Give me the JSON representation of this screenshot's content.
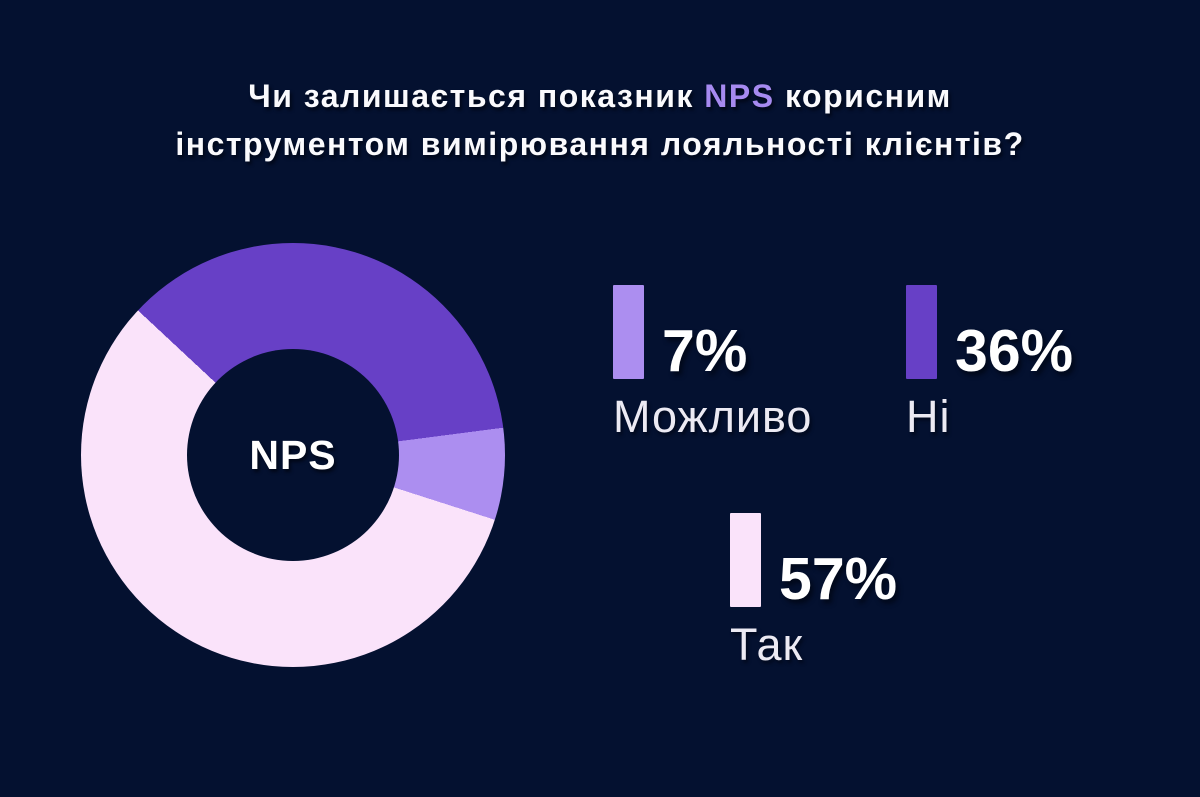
{
  "page": {
    "background": "#041130"
  },
  "title": {
    "line1_pre": "Чи залишається показник ",
    "highlight": "NPS",
    "line1_post": " корисним",
    "line2": "інструментом вимірювання лояльності клієнтів?",
    "highlight_color": "#a68af0"
  },
  "chart_data": {
    "type": "pie",
    "donut": true,
    "title": "Чи залишається показник NPS корисним інструментом вимірювання лояльності клієнтів?",
    "center_label": "NPS",
    "start_angle_deg": 313,
    "categories": [
      "Ні",
      "Можливо",
      "Так"
    ],
    "values": [
      36,
      7,
      57
    ],
    "colors": [
      "#6740c6",
      "#ac8ef0",
      "#fae3fa"
    ],
    "legend_position": "right",
    "hole_color": "#041130"
  },
  "legend": [
    {
      "value_label": "7%",
      "name": "Можливо",
      "color": "#ac8ef0"
    },
    {
      "value_label": "36%",
      "name": "Ні",
      "color": "#6740c6"
    },
    {
      "value_label": "57%",
      "name": "Так",
      "color": "#fae3fa"
    }
  ]
}
